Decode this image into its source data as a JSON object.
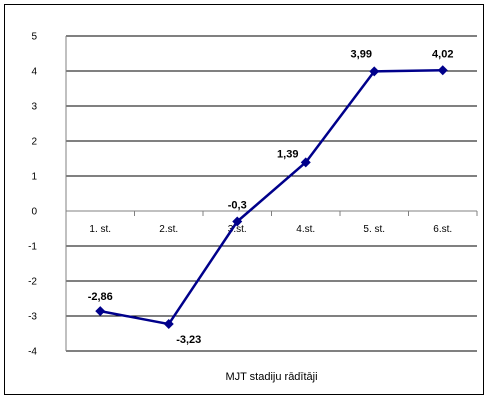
{
  "chart_data": {
    "type": "line",
    "categories": [
      "1. st.",
      "2.st.",
      "3.st.",
      "4.st.",
      "5. st.",
      "6.st."
    ],
    "series": [
      {
        "values": [
          -2.86,
          -3.23,
          -0.3,
          1.39,
          3.99,
          4.02
        ],
        "labels": [
          "-2,86",
          "-3,23",
          "-0,3",
          "1,39",
          "3,99",
          "4,02"
        ]
      }
    ],
    "xlabel": "MJT stadiju rādītāji",
    "ylim": [
      -4,
      5
    ],
    "yticks": [
      5,
      4,
      3,
      2,
      1,
      0,
      -1,
      -2,
      -3,
      -4
    ],
    "grid": true,
    "legend": "none",
    "colors": {
      "line": "#00008B",
      "marker": "#00008B",
      "grid": "#000000",
      "axis": "#808080"
    }
  }
}
